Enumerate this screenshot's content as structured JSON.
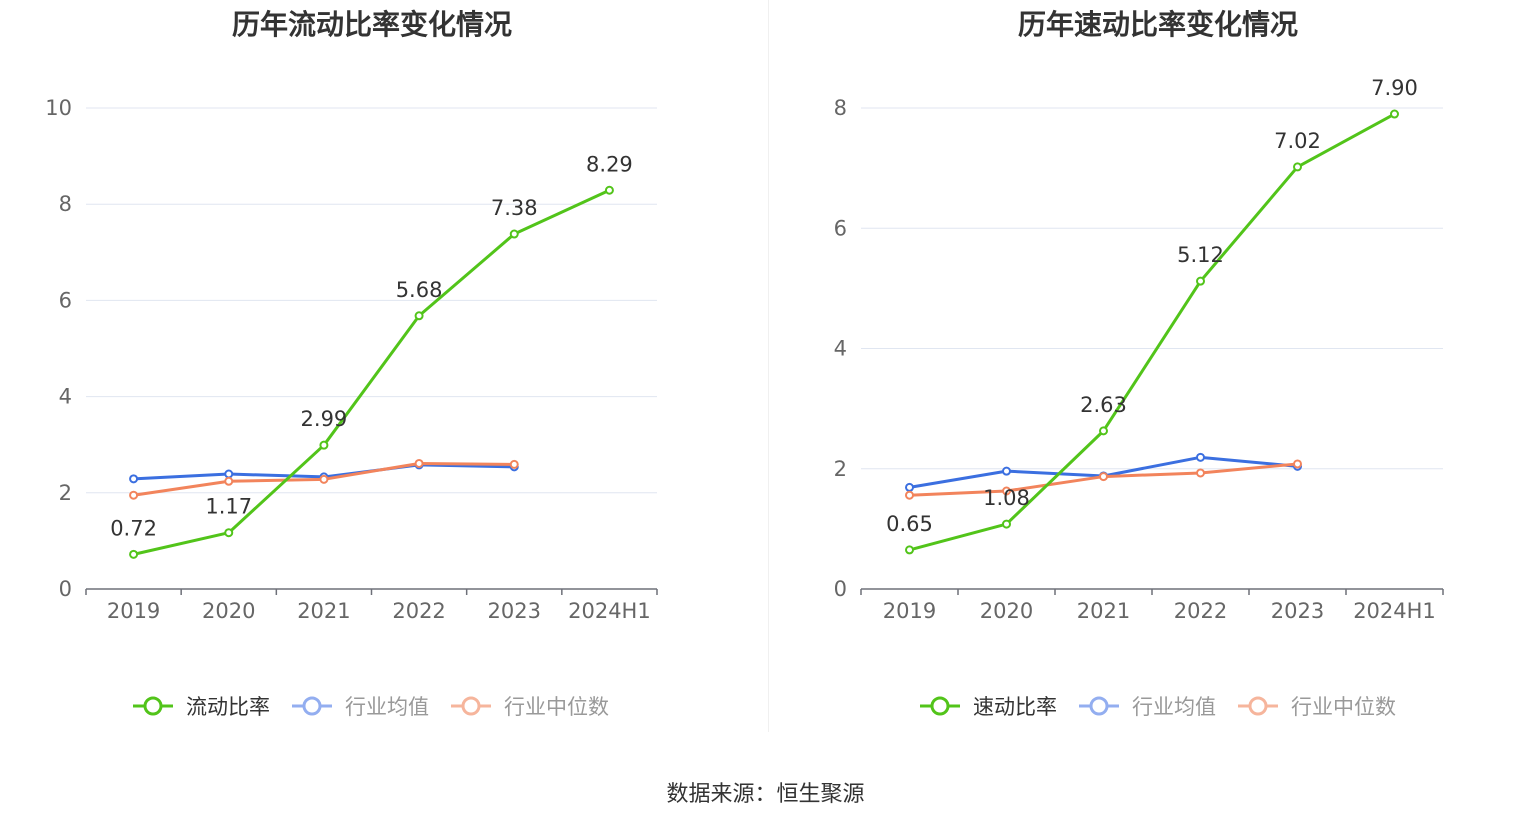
{
  "chart_data": [
    {
      "type": "line",
      "title": "历年流动比率变化情况",
      "categories": [
        "2019",
        "2020",
        "2021",
        "2022",
        "2023",
        "2024H1"
      ],
      "ylim": [
        0,
        10
      ],
      "yticks": [
        0,
        2,
        4,
        6,
        8,
        10
      ],
      "series": [
        {
          "name": "流动比率",
          "color": "#52c41a",
          "values": [
            0.72,
            1.17,
            2.99,
            5.68,
            7.38,
            8.29
          ],
          "labels": [
            "0.72",
            "1.17",
            "2.99",
            "5.68",
            "7.38",
            "8.29"
          ]
        },
        {
          "name": "行业均值",
          "color": "#3b6fe0",
          "values": [
            2.29,
            2.39,
            2.33,
            2.58,
            2.54,
            null
          ]
        },
        {
          "name": "行业中位数",
          "color": "#f2845c",
          "values": [
            1.95,
            2.24,
            2.28,
            2.61,
            2.59,
            null
          ]
        }
      ]
    },
    {
      "type": "line",
      "title": "历年速动比率变化情况",
      "categories": [
        "2019",
        "2020",
        "2021",
        "2022",
        "2023",
        "2024H1"
      ],
      "ylim": [
        0,
        8
      ],
      "yticks": [
        0,
        2,
        4,
        6,
        8
      ],
      "series": [
        {
          "name": "速动比率",
          "color": "#52c41a",
          "values": [
            0.65,
            1.08,
            2.63,
            5.12,
            7.02,
            7.9
          ],
          "labels": [
            "0.65",
            "1.08",
            "2.63",
            "5.12",
            "7.02",
            "7.90"
          ]
        },
        {
          "name": "行业均值",
          "color": "#3b6fe0",
          "values": [
            1.69,
            1.96,
            1.88,
            2.19,
            2.04,
            null
          ]
        },
        {
          "name": "行业中位数",
          "color": "#f2845c",
          "values": [
            1.56,
            1.63,
            1.87,
            1.93,
            2.08,
            null
          ]
        }
      ]
    }
  ],
  "legend_faded_colors": [
    "#52c41a",
    "#93aef0",
    "#f6b59c"
  ],
  "source": "数据来源：恒生聚源"
}
